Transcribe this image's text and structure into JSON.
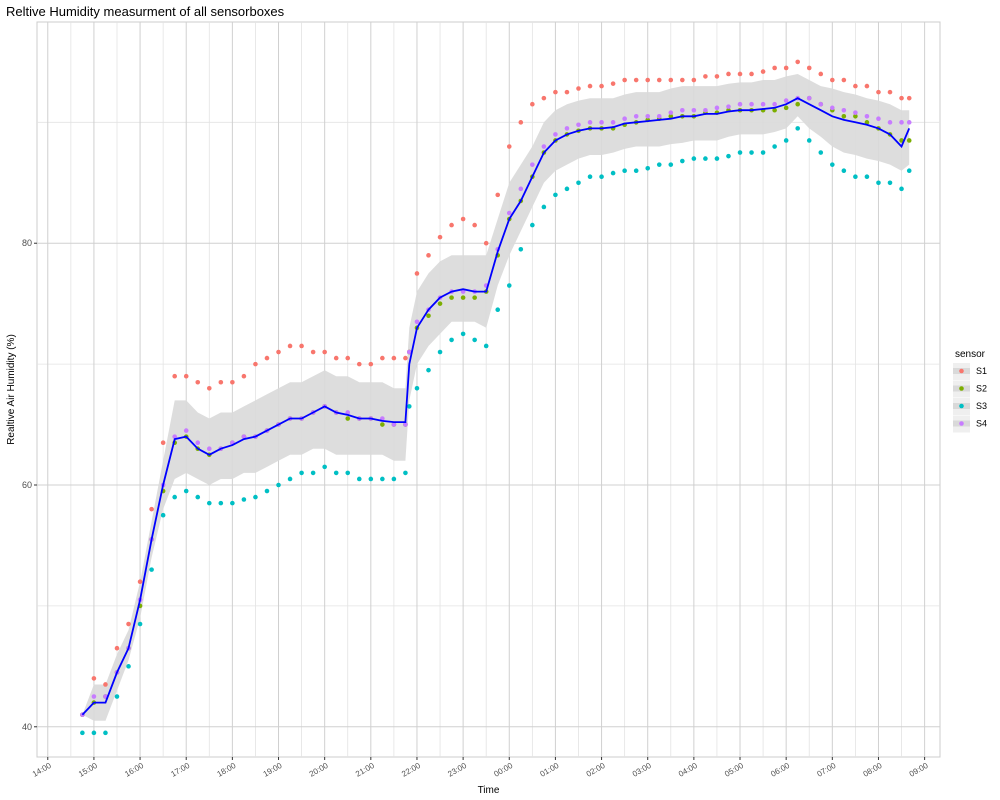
{
  "chart_data": {
    "type": "scatter",
    "title": "Reltive Humidity measurment of all sensorboxes",
    "xlabel": "Time",
    "ylabel": "Realtive Air Humidity (%)",
    "x_ticks": [
      "14:00",
      "15:00",
      "16:00",
      "17:00",
      "18:00",
      "19:00",
      "20:00",
      "21:00",
      "22:00",
      "23:00",
      "00:00",
      "01:00",
      "02:00",
      "03:00",
      "04:00",
      "05:00",
      "06:00",
      "07:00",
      "08:00",
      "09:00"
    ],
    "y_ticks": [
      40,
      60,
      80
    ],
    "xlim": [
      "13:46",
      "09:20"
    ],
    "ylim": [
      37.5,
      98.3
    ],
    "grid": true,
    "legend": {
      "title": "sensor",
      "position": "right"
    },
    "colors": {
      "S1": "#F8766D",
      "S2": "#7CAE00",
      "S3": "#00BFC4",
      "S4": "#C77CFF",
      "mean": "#0000FF",
      "band": "#d9d9d9"
    },
    "x": [
      "14:45",
      "15:00",
      "15:15",
      "15:30",
      "15:45",
      "16:00",
      "16:15",
      "16:30",
      "16:45",
      "17:00",
      "17:15",
      "17:30",
      "17:45",
      "18:00",
      "18:15",
      "18:30",
      "18:45",
      "19:00",
      "19:15",
      "19:30",
      "19:45",
      "20:00",
      "20:15",
      "20:30",
      "20:45",
      "21:00",
      "21:15",
      "21:30",
      "21:45",
      "21:50",
      "22:00",
      "22:15",
      "22:30",
      "22:45",
      "23:00",
      "23:15",
      "23:30",
      "23:45",
      "00:00",
      "00:15",
      "00:30",
      "00:45",
      "01:00",
      "01:15",
      "01:30",
      "01:45",
      "02:00",
      "02:15",
      "02:30",
      "02:45",
      "03:00",
      "03:15",
      "03:30",
      "03:45",
      "04:00",
      "04:15",
      "04:30",
      "04:45",
      "05:00",
      "05:15",
      "05:30",
      "05:45",
      "06:00",
      "06:15",
      "06:30",
      "06:45",
      "07:00",
      "07:15",
      "07:30",
      "07:45",
      "08:00",
      "08:15",
      "08:30",
      "08:40"
    ],
    "series": [
      {
        "name": "S1",
        "values": [
          41.0,
          44.0,
          43.5,
          46.5,
          48.5,
          52.0,
          58.0,
          63.5,
          69.0,
          69.0,
          68.5,
          68.0,
          68.5,
          68.5,
          69.0,
          70.0,
          70.5,
          71.0,
          71.5,
          71.5,
          71.0,
          71.0,
          70.5,
          70.5,
          70.0,
          70.0,
          70.5,
          70.5,
          70.5,
          71.0,
          77.5,
          79.0,
          80.5,
          81.5,
          82.0,
          81.5,
          80.0,
          84.0,
          88.0,
          90.0,
          91.5,
          92.0,
          92.5,
          92.5,
          92.8,
          93.0,
          93.0,
          93.2,
          93.5,
          93.5,
          93.5,
          93.5,
          93.5,
          93.5,
          93.5,
          93.8,
          93.8,
          94.0,
          94.0,
          94.0,
          94.2,
          94.5,
          94.5,
          95.0,
          94.5,
          94.0,
          93.5,
          93.5,
          93.0,
          93.0,
          92.5,
          92.5,
          92.0,
          92.0
        ]
      },
      {
        "name": "S2",
        "values": [
          41.0,
          42.0,
          42.5,
          44.5,
          46.5,
          50.0,
          55.5,
          59.5,
          63.5,
          64.0,
          63.0,
          62.5,
          63.0,
          63.5,
          64.0,
          64.0,
          64.5,
          65.0,
          65.5,
          65.5,
          66.0,
          66.5,
          66.0,
          65.5,
          65.5,
          65.5,
          65.0,
          65.0,
          65.0,
          71.0,
          73.0,
          74.0,
          75.0,
          75.5,
          75.5,
          75.5,
          76.0,
          79.0,
          82.0,
          83.5,
          85.5,
          87.5,
          88.5,
          89.0,
          89.3,
          89.5,
          89.5,
          89.5,
          89.8,
          90.0,
          90.2,
          90.3,
          90.5,
          90.5,
          90.5,
          90.8,
          90.8,
          91.0,
          91.0,
          91.0,
          91.0,
          91.0,
          91.2,
          91.5,
          92.0,
          91.5,
          91.0,
          90.5,
          90.5,
          90.0,
          89.5,
          89.0,
          88.5,
          88.5
        ]
      },
      {
        "name": "S3",
        "values": [
          39.5,
          39.5,
          39.5,
          42.5,
          45.0,
          48.5,
          53.0,
          57.5,
          59.0,
          59.5,
          59.0,
          58.5,
          58.5,
          58.5,
          58.8,
          59.0,
          59.5,
          60.0,
          60.5,
          61.0,
          61.0,
          61.5,
          61.0,
          61.0,
          60.5,
          60.5,
          60.5,
          60.5,
          61.0,
          66.5,
          68.0,
          69.5,
          71.0,
          72.0,
          72.5,
          72.0,
          71.5,
          74.5,
          76.5,
          79.5,
          81.5,
          83.0,
          84.0,
          84.5,
          85.0,
          85.5,
          85.5,
          85.8,
          86.0,
          86.0,
          86.2,
          86.5,
          86.5,
          86.8,
          87.0,
          87.0,
          87.0,
          87.2,
          87.5,
          87.5,
          87.5,
          88.0,
          88.5,
          89.5,
          88.5,
          87.5,
          86.5,
          86.0,
          85.5,
          85.5,
          85.0,
          85.0,
          84.5,
          86.0
        ]
      },
      {
        "name": "S4",
        "values": [
          41.0,
          42.5,
          42.5,
          44.5,
          46.5,
          50.5,
          55.5,
          60.0,
          64.0,
          64.5,
          63.5,
          63.0,
          63.0,
          63.5,
          64.0,
          64.0,
          64.5,
          65.0,
          65.5,
          65.5,
          66.0,
          66.5,
          66.0,
          66.0,
          65.5,
          65.5,
          65.5,
          65.0,
          65.0,
          71.0,
          73.5,
          74.5,
          75.5,
          76.0,
          76.0,
          76.0,
          76.5,
          79.5,
          82.5,
          84.5,
          86.5,
          88.0,
          89.0,
          89.5,
          89.8,
          90.0,
          90.0,
          90.0,
          90.3,
          90.5,
          90.5,
          90.5,
          90.8,
          91.0,
          91.0,
          91.0,
          91.2,
          91.3,
          91.5,
          91.5,
          91.5,
          91.5,
          91.8,
          92.0,
          92.0,
          91.5,
          91.2,
          91.0,
          90.8,
          90.5,
          90.3,
          90.0,
          90.0,
          90.0
        ]
      }
    ],
    "mean": [
      41.0,
      42.0,
      42.0,
      44.5,
      46.5,
      50.5,
      55.5,
      60.0,
      63.8,
      64.0,
      63.0,
      62.5,
      63.0,
      63.3,
      63.8,
      64.0,
      64.5,
      65.0,
      65.5,
      65.5,
      66.0,
      66.5,
      66.0,
      65.8,
      65.5,
      65.5,
      65.3,
      65.2,
      65.2,
      70.0,
      73.0,
      74.5,
      75.5,
      76.0,
      76.2,
      76.0,
      76.0,
      79.3,
      82.0,
      83.5,
      85.5,
      87.5,
      88.5,
      89.0,
      89.3,
      89.5,
      89.5,
      89.6,
      89.9,
      90.0,
      90.1,
      90.2,
      90.3,
      90.5,
      90.5,
      90.7,
      90.7,
      90.9,
      91.0,
      91.0,
      91.1,
      91.2,
      91.5,
      92.0,
      91.5,
      91.0,
      90.5,
      90.2,
      90.0,
      89.8,
      89.5,
      89.0,
      88.0,
      89.5
    ],
    "band_lower": [
      41.0,
      40.5,
      40.5,
      43.0,
      45.5,
      49.0,
      54.0,
      58.0,
      60.5,
      61.0,
      60.5,
      60.0,
      60.5,
      60.5,
      61.0,
      61.0,
      61.5,
      62.0,
      62.5,
      62.5,
      63.0,
      63.0,
      62.5,
      62.5,
      62.5,
      62.5,
      62.5,
      62.0,
      62.0,
      67.0,
      70.0,
      71.5,
      72.5,
      73.5,
      73.5,
      73.5,
      73.0,
      76.5,
      79.0,
      81.0,
      83.0,
      85.0,
      86.0,
      86.5,
      87.0,
      87.3,
      87.3,
      87.5,
      87.8,
      88.0,
      88.0,
      88.0,
      88.2,
      88.3,
      88.5,
      88.5,
      88.5,
      88.8,
      89.0,
      89.0,
      89.0,
      89.2,
      89.5,
      90.5,
      89.5,
      88.8,
      88.0,
      87.5,
      87.3,
      87.0,
      86.8,
      86.5,
      86.0,
      86.5
    ],
    "band_upper": [
      41.0,
      43.5,
      43.5,
      46.0,
      48.0,
      52.0,
      57.0,
      62.0,
      67.0,
      67.0,
      66.0,
      65.5,
      66.0,
      66.0,
      66.5,
      67.0,
      67.5,
      68.0,
      68.5,
      68.5,
      69.0,
      69.5,
      69.0,
      69.0,
      68.5,
      68.5,
      68.5,
      68.0,
      68.0,
      73.0,
      76.0,
      77.5,
      78.5,
      79.0,
      79.0,
      79.0,
      79.0,
      82.0,
      85.0,
      86.5,
      88.0,
      90.0,
      91.0,
      91.5,
      91.8,
      92.0,
      92.0,
      92.0,
      92.3,
      92.5,
      92.5,
      92.5,
      92.8,
      93.0,
      93.0,
      93.0,
      93.0,
      93.2,
      93.3,
      93.3,
      93.5,
      93.5,
      93.8,
      94.0,
      93.5,
      93.0,
      92.8,
      92.5,
      92.3,
      92.0,
      91.8,
      91.5,
      91.0,
      91.0
    ]
  }
}
